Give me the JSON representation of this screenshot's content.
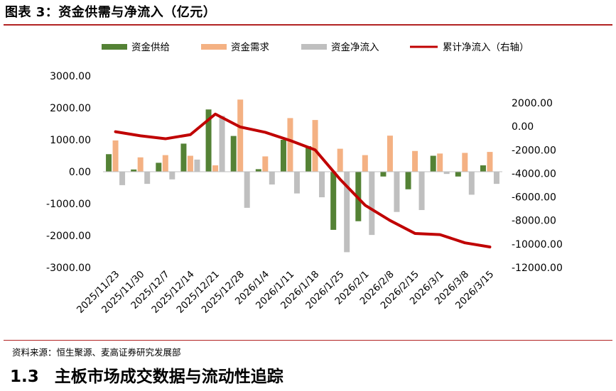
{
  "figure": {
    "title": "图表 3：资金供需与净流入（亿元）",
    "source": "资料来源：恒生聚源、麦高证券研究发展部"
  },
  "section": {
    "number": "1.3",
    "title": "主板市场成交数据与流动性追踪"
  },
  "colors": {
    "supply": "#548235",
    "demand": "#f4b183",
    "net": "#bfbfbf",
    "cumulative": "#c00000",
    "rule": "#b22222"
  },
  "chart_data": {
    "type": "bar",
    "categories": [
      "2025/11/23",
      "2025/11/30",
      "2025/12/7",
      "2025/12/14",
      "2025/12/21",
      "2025/12/28",
      "2026/1/4",
      "2026/1/11",
      "2026/1/18",
      "2026/1/25",
      "2026/2/1",
      "2026/2/8",
      "2026/2/15",
      "2026/3/1",
      "2026/3/8",
      "2026/3/15"
    ],
    "series": [
      {
        "name": "资金供给",
        "type": "bar",
        "axis": "left",
        "values": [
          550,
          70,
          280,
          880,
          1950,
          1120,
          80,
          1000,
          800,
          -1820,
          -1550,
          -150,
          -550,
          500,
          -150,
          200
        ]
      },
      {
        "name": "资金需求",
        "type": "bar",
        "axis": "left",
        "values": [
          980,
          450,
          520,
          500,
          200,
          2260,
          480,
          1680,
          1620,
          720,
          520,
          1130,
          650,
          570,
          590,
          620
        ]
      },
      {
        "name": "资金净流入",
        "type": "bar",
        "axis": "left",
        "values": [
          -420,
          -380,
          -240,
          380,
          1750,
          -1130,
          -400,
          -680,
          -800,
          -2520,
          -1980,
          -1260,
          -1200,
          -70,
          -720,
          -380
        ]
      },
      {
        "name": "累计净流入（右轴）",
        "type": "line",
        "axis": "right",
        "values": [
          -450,
          -800,
          -1050,
          -700,
          1050,
          -50,
          -500,
          -1200,
          -2000,
          -4500,
          -6700,
          -8000,
          -9100,
          -9200,
          -9900,
          -10250
        ]
      }
    ],
    "y_left": {
      "min": -3000,
      "max": 3000,
      "step": 1000,
      "tick_labels": [
        "3000.00",
        "2000.00",
        "1000.00",
        "0.00",
        "-1000.00",
        "-2000.00",
        "-3000.00"
      ]
    },
    "y_right": {
      "min": -12000,
      "max": 2000,
      "step": 2000,
      "tick_labels": [
        "2000.00",
        "0.00",
        "-2000.00",
        "-4000.00",
        "-6000.00",
        "-8000.00",
        "-10000.00",
        "-12000.00"
      ]
    },
    "legend_position": "top",
    "grid": false
  }
}
